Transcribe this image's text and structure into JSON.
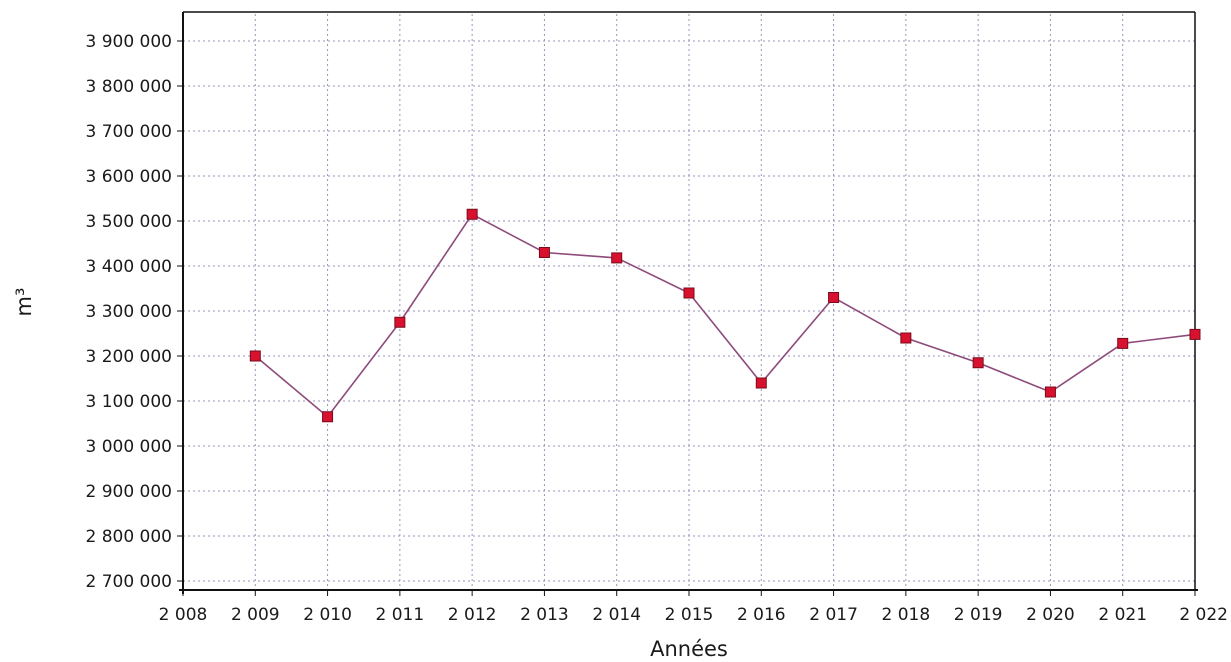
{
  "chart_data": {
    "type": "line",
    "xlabel": "Années",
    "ylabel": "m³",
    "x_ticks": [
      "2 008",
      "2 009",
      "2 010",
      "2 011",
      "2 012",
      "2 013",
      "2 014",
      "2 015",
      "2 016",
      "2 017",
      "2 018",
      "2 019",
      "2 020",
      "2 021",
      "2 022"
    ],
    "y_ticks": [
      "2 700 000",
      "2 800 000",
      "2 900 000",
      "3 000 000",
      "3 100 000",
      "3 200 000",
      "3 300 000",
      "3 400 000",
      "3 500 000",
      "3 600 000",
      "3 700 000",
      "3 800 000",
      "3 900 000"
    ],
    "xlim": [
      2008,
      2022
    ],
    "ylim": [
      2680000,
      3960000
    ],
    "grid": true,
    "series": [
      {
        "color": "#8e4a7a",
        "marker_color": "#d8122e",
        "x": [
          2009,
          2010,
          2011,
          2012,
          2013,
          2014,
          2015,
          2016,
          2017,
          2018,
          2019,
          2020,
          2021,
          2022
        ],
        "values": [
          3200000,
          3065000,
          3275000,
          3515000,
          3430000,
          3418000,
          3340000,
          3140000,
          3330000,
          3240000,
          3185000,
          3120000,
          3228000,
          3248000
        ]
      }
    ]
  }
}
